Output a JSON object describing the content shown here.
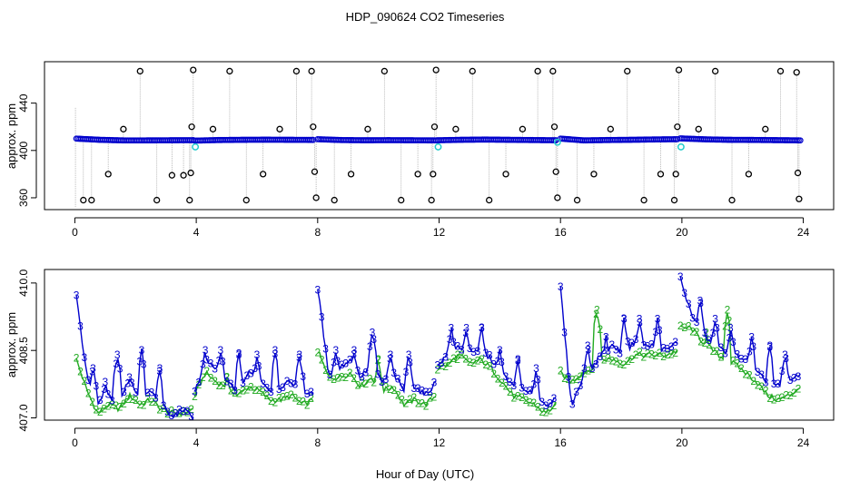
{
  "title": "HDP_090624  CO2 Timeseries",
  "xlabel": "Hour of Day (UTC)",
  "chart_data": [
    {
      "type": "scatter",
      "panel": "top",
      "ylabel": "approx. ppm",
      "xlim": [
        -1,
        25
      ],
      "ylim": [
        350,
        475
      ],
      "xticks": [
        0,
        4,
        8,
        12,
        16,
        20,
        24
      ],
      "xtick_labels": [
        "0",
        "4",
        "8",
        "12",
        "16",
        "20",
        "24"
      ],
      "yticks": [
        360,
        400,
        440
      ],
      "ytick_labels": [
        "360",
        "400",
        "440"
      ],
      "baseline_segments": [
        {
          "start": 0.05,
          "end": 3.9,
          "values": [
            410,
            409,
            408.5,
            408.5,
            408.6,
            408.7
          ]
        },
        {
          "start": 3.95,
          "end": 7.85,
          "values": [
            408.3,
            408.8,
            409,
            409.1,
            409,
            408.9
          ]
        },
        {
          "start": 8.0,
          "end": 11.9,
          "values": [
            409.5,
            408.8,
            408.6,
            408.7,
            408.6,
            408.5
          ]
        },
        {
          "start": 11.95,
          "end": 15.85,
          "values": [
            408.6,
            409,
            409.2,
            409,
            408.8,
            408.6
          ]
        },
        {
          "start": 16.0,
          "end": 19.85,
          "values": [
            410,
            408.5,
            408.8,
            409,
            409.3,
            409.5
          ]
        },
        {
          "start": 19.95,
          "end": 23.9,
          "values": [
            410.2,
            409.4,
            409,
            408.9,
            408.7,
            408.5
          ]
        }
      ],
      "calibration_points": [
        {
          "x": 3.97,
          "y": 403
        },
        {
          "x": 11.97,
          "y": 403
        },
        {
          "x": 15.9,
          "y": 407
        },
        {
          "x": 19.97,
          "y": 403
        }
      ],
      "outlier_points": [
        {
          "x": 0.28,
          "y": 358
        },
        {
          "x": 0.55,
          "y": 358
        },
        {
          "x": 1.1,
          "y": 380
        },
        {
          "x": 1.6,
          "y": 418
        },
        {
          "x": 2.15,
          "y": 467
        },
        {
          "x": 2.7,
          "y": 358
        },
        {
          "x": 3.2,
          "y": 379
        },
        {
          "x": 3.58,
          "y": 379
        },
        {
          "x": 3.78,
          "y": 358
        },
        {
          "x": 3.82,
          "y": 381
        },
        {
          "x": 3.85,
          "y": 420
        },
        {
          "x": 3.9,
          "y": 468
        },
        {
          "x": 4.55,
          "y": 418
        },
        {
          "x": 5.1,
          "y": 467
        },
        {
          "x": 5.65,
          "y": 358
        },
        {
          "x": 6.2,
          "y": 380
        },
        {
          "x": 6.75,
          "y": 418
        },
        {
          "x": 7.3,
          "y": 467
        },
        {
          "x": 7.8,
          "y": 467
        },
        {
          "x": 7.85,
          "y": 420
        },
        {
          "x": 7.9,
          "y": 382
        },
        {
          "x": 7.95,
          "y": 360
        },
        {
          "x": 8.55,
          "y": 358
        },
        {
          "x": 9.1,
          "y": 380
        },
        {
          "x": 9.65,
          "y": 418
        },
        {
          "x": 10.2,
          "y": 467
        },
        {
          "x": 10.75,
          "y": 358
        },
        {
          "x": 11.3,
          "y": 380
        },
        {
          "x": 11.75,
          "y": 358
        },
        {
          "x": 11.8,
          "y": 380
        },
        {
          "x": 11.85,
          "y": 420
        },
        {
          "x": 11.9,
          "y": 468
        },
        {
          "x": 12.55,
          "y": 418
        },
        {
          "x": 13.1,
          "y": 467
        },
        {
          "x": 13.65,
          "y": 358
        },
        {
          "x": 14.2,
          "y": 380
        },
        {
          "x": 14.75,
          "y": 418
        },
        {
          "x": 15.25,
          "y": 467
        },
        {
          "x": 15.75,
          "y": 467
        },
        {
          "x": 15.8,
          "y": 420
        },
        {
          "x": 15.85,
          "y": 382
        },
        {
          "x": 15.9,
          "y": 360
        },
        {
          "x": 16.55,
          "y": 358
        },
        {
          "x": 17.1,
          "y": 380
        },
        {
          "x": 17.65,
          "y": 418
        },
        {
          "x": 18.2,
          "y": 467
        },
        {
          "x": 18.75,
          "y": 358
        },
        {
          "x": 19.3,
          "y": 380
        },
        {
          "x": 19.75,
          "y": 358
        },
        {
          "x": 19.8,
          "y": 380
        },
        {
          "x": 19.85,
          "y": 420
        },
        {
          "x": 19.9,
          "y": 468
        },
        {
          "x": 20.55,
          "y": 418
        },
        {
          "x": 21.1,
          "y": 467
        },
        {
          "x": 21.65,
          "y": 358
        },
        {
          "x": 22.2,
          "y": 380
        },
        {
          "x": 22.75,
          "y": 418
        },
        {
          "x": 23.25,
          "y": 467
        },
        {
          "x": 23.78,
          "y": 466
        },
        {
          "x": 23.82,
          "y": 381
        },
        {
          "x": 23.86,
          "y": 359
        }
      ],
      "colors": {
        "baseline": "#0000cc",
        "calibration": "#22cccc",
        "outlier": "#000000",
        "connector": "#aaaaaa"
      }
    },
    {
      "type": "line",
      "panel": "bottom",
      "ylabel": "approx. ppm",
      "xlim": [
        -1,
        25
      ],
      "ylim": [
        406.95,
        410.3
      ],
      "xticks": [
        0,
        4,
        8,
        12,
        16,
        20,
        24
      ],
      "xtick_labels": [
        "0",
        "4",
        "8",
        "12",
        "16",
        "20",
        "24"
      ],
      "yticks": [
        407.0,
        408.5,
        410.0
      ],
      "ytick_labels": [
        "407.0",
        "408.5",
        "410.0"
      ],
      "series": [
        {
          "name": "3",
          "marker": "3",
          "color": "#0000cc",
          "segments": [
            {
              "start": 0.05,
              "end": 3.9,
              "values": [
                409.7,
                407.9,
                407.3,
                407.5,
                407.3,
                407.9,
                407.4,
                407.6,
                407.3,
                407.0,
                407.2,
                407.0
              ]
            },
            {
              "start": 3.95,
              "end": 7.85,
              "values": [
                407.6,
                408.2,
                408.1,
                407.8,
                407.6,
                408.0,
                407.9,
                407.6,
                407.7,
                407.8,
                407.6,
                407.5
              ]
            },
            {
              "start": 8.0,
              "end": 11.9,
              "values": [
                409.9,
                408.0,
                408.1,
                408.3,
                407.9,
                408.2,
                407.8,
                408.0,
                407.6,
                407.7,
                407.5,
                407.8
              ]
            },
            {
              "start": 11.95,
              "end": 15.85,
              "values": [
                408.2,
                408.4,
                408.6,
                408.4,
                408.5,
                408.3,
                408.0,
                407.7,
                407.6,
                407.5,
                407.3,
                407.4
              ]
            },
            {
              "start": 16.0,
              "end": 19.85,
              "values": [
                409.9,
                407.3,
                407.8,
                408.1,
                408.5,
                408.6,
                408.4,
                408.7,
                408.6,
                408.6,
                408.5,
                408.7
              ]
            },
            {
              "start": 19.95,
              "end": 23.9,
              "values": [
                410.1,
                409.3,
                408.9,
                408.6,
                408.5,
                408.4,
                408.3,
                408.0,
                407.8,
                407.7,
                407.8,
                408.0
              ]
            }
          ],
          "peaks": [
            {
              "x": 0.6,
              "y": 408.1
            },
            {
              "x": 1.0,
              "y": 407.8
            },
            {
              "x": 1.4,
              "y": 408.4
            },
            {
              "x": 1.8,
              "y": 407.9
            },
            {
              "x": 2.2,
              "y": 408.5
            },
            {
              "x": 2.8,
              "y": 408.1
            },
            {
              "x": 4.3,
              "y": 408.5
            },
            {
              "x": 4.8,
              "y": 408.5
            },
            {
              "x": 5.4,
              "y": 408.4
            },
            {
              "x": 6.0,
              "y": 408.4
            },
            {
              "x": 6.6,
              "y": 408.5
            },
            {
              "x": 7.4,
              "y": 408.4
            },
            {
              "x": 8.6,
              "y": 408.5
            },
            {
              "x": 9.2,
              "y": 408.5
            },
            {
              "x": 9.8,
              "y": 408.9
            },
            {
              "x": 10.4,
              "y": 408.4
            },
            {
              "x": 11.0,
              "y": 408.4
            },
            {
              "x": 12.4,
              "y": 409.0
            },
            {
              "x": 12.9,
              "y": 409.0
            },
            {
              "x": 13.4,
              "y": 409.0
            },
            {
              "x": 14.0,
              "y": 408.5
            },
            {
              "x": 14.6,
              "y": 408.3
            },
            {
              "x": 15.2,
              "y": 408.1
            },
            {
              "x": 16.9,
              "y": 408.6
            },
            {
              "x": 17.5,
              "y": 408.8
            },
            {
              "x": 18.1,
              "y": 409.2
            },
            {
              "x": 18.6,
              "y": 409.2
            },
            {
              "x": 19.2,
              "y": 409.2
            },
            {
              "x": 20.6,
              "y": 409.6
            },
            {
              "x": 21.1,
              "y": 409.2
            },
            {
              "x": 21.6,
              "y": 409.0
            },
            {
              "x": 22.3,
              "y": 408.8
            },
            {
              "x": 22.9,
              "y": 408.6
            },
            {
              "x": 23.4,
              "y": 408.4
            }
          ]
        },
        {
          "name": "2",
          "marker": "2",
          "color": "#22aa22",
          "segments": [
            {
              "start": 0.05,
              "end": 3.9,
              "values": [
                408.3,
                407.6,
                407.1,
                407.3,
                407.2,
                407.5,
                407.3,
                407.4,
                407.2,
                407.1,
                407.1,
                407.2
              ]
            },
            {
              "start": 3.95,
              "end": 7.85,
              "values": [
                407.5,
                408.0,
                407.8,
                407.7,
                407.5,
                407.7,
                407.6,
                407.4,
                407.4,
                407.5,
                407.3,
                407.4
              ]
            },
            {
              "start": 8.0,
              "end": 11.9,
              "values": [
                408.5,
                407.9,
                407.9,
                408.0,
                407.7,
                407.9,
                407.6,
                407.7,
                407.3,
                407.4,
                407.3,
                407.5
              ]
            },
            {
              "start": 11.95,
              "end": 15.85,
              "values": [
                408.1,
                408.2,
                408.4,
                408.2,
                408.3,
                408.1,
                407.8,
                407.5,
                407.4,
                407.3,
                407.1,
                407.3
              ]
            },
            {
              "start": 16.0,
              "end": 19.85,
              "values": [
                408.0,
                407.8,
                408.0,
                408.1,
                408.3,
                408.3,
                408.2,
                408.4,
                408.4,
                408.4,
                408.4,
                408.5
              ]
            },
            {
              "start": 19.95,
              "end": 23.9,
              "values": [
                409.0,
                409.0,
                408.7,
                408.5,
                408.3,
                408.2,
                408.0,
                407.8,
                407.5,
                407.4,
                407.5,
                407.7
              ]
            }
          ],
          "peaks": [
            {
              "x": 17.2,
              "y": 409.4
            },
            {
              "x": 21.5,
              "y": 409.4
            },
            {
              "x": 20.8,
              "y": 408.9
            },
            {
              "x": 10.0,
              "y": 408.3
            },
            {
              "x": 5.0,
              "y": 407.9
            },
            {
              "x": 12.6,
              "y": 408.3
            }
          ]
        }
      ]
    }
  ]
}
